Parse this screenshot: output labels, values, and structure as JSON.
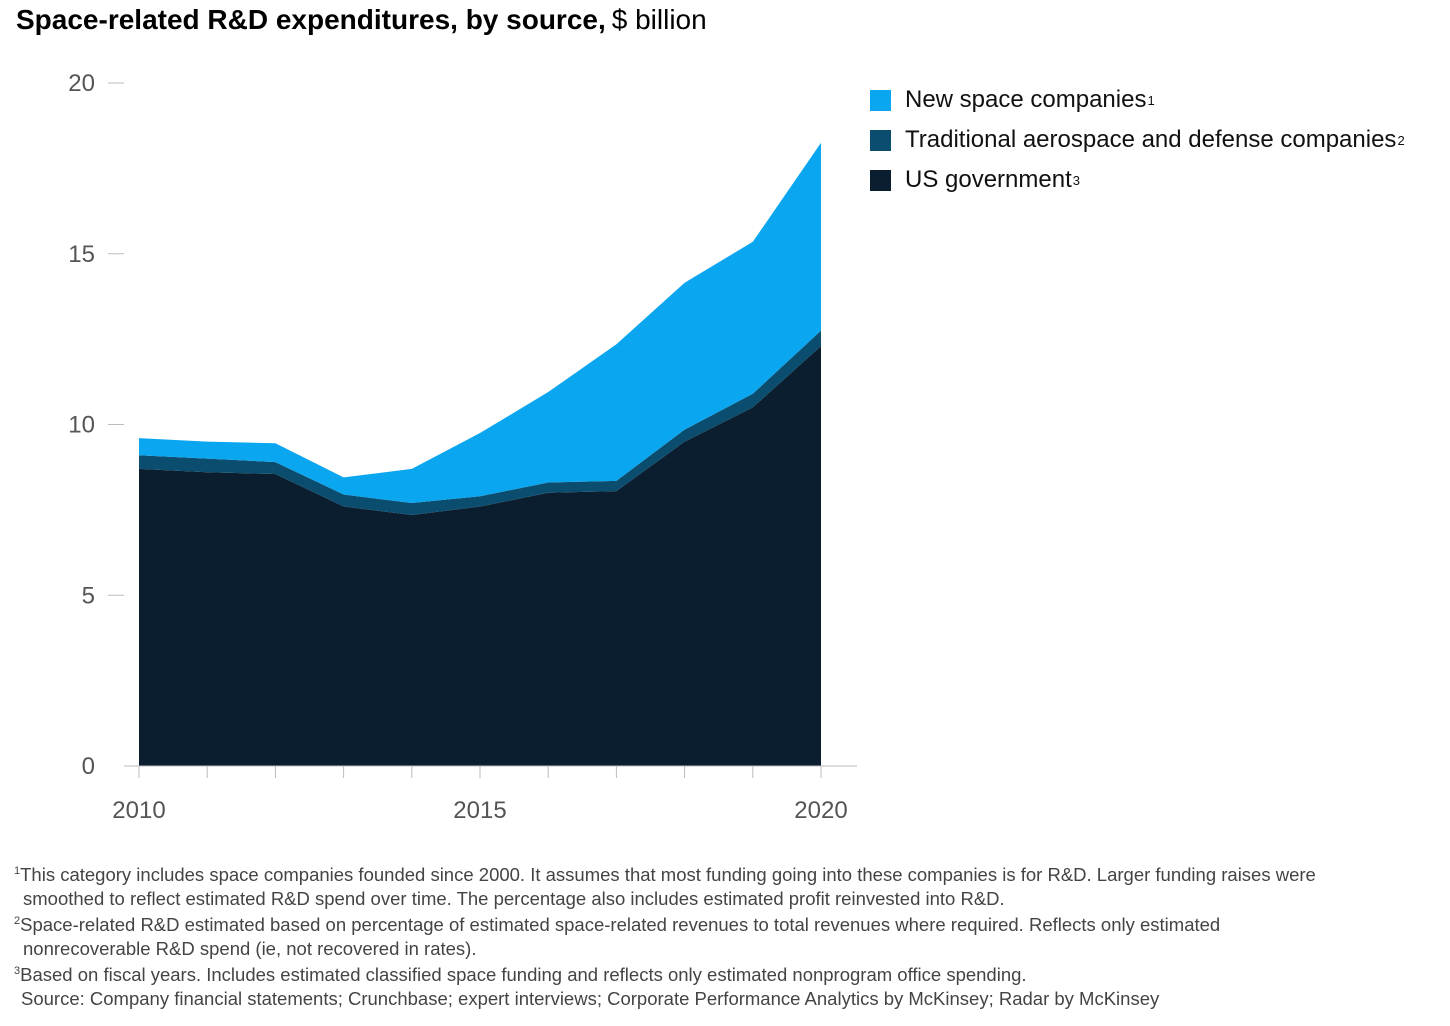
{
  "title": {
    "bold": "Space-related R&D expenditures, by source,",
    "unit": "$ billion"
  },
  "legend": [
    {
      "label": "New space companies",
      "sup": "1",
      "color": "#0aa6f0"
    },
    {
      "label": "Traditional aerospace and defense companies",
      "sup": "2",
      "color": "#0b4d6e"
    },
    {
      "label": "US government",
      "sup": "3",
      "color": "#0a1e2f"
    }
  ],
  "footnotes": [
    {
      "sup": "1",
      "line1": "This category includes space companies founded since 2000. It assumes that most funding going into these companies is for R&D. Larger funding raises were",
      "line2": "smoothed to reflect estimated R&D spend over time. The percentage also includes estimated profit reinvested into R&D."
    },
    {
      "sup": "2",
      "line1": "Space-related R&D estimated based on percentage of estimated space-related revenues to total revenues where required. Reflects only estimated",
      "line2": "nonrecoverable R&D spend (ie, not recovered in rates)."
    },
    {
      "sup": "3",
      "line1": "Based on fiscal years. Includes estimated classified space funding and reflects only estimated nonprogram office spending.",
      "line2": ""
    }
  ],
  "source": "Source: Company financial statements; Crunchbase; expert interviews; Corporate Performance Analytics by McKinsey; Radar by McKinsey",
  "chart_data": {
    "type": "area",
    "stacked": true,
    "x": [
      2010,
      2011,
      2012,
      2013,
      2014,
      2015,
      2016,
      2017,
      2018,
      2019,
      2020
    ],
    "x_tick_labels": [
      "2010",
      "2015",
      "2020"
    ],
    "y_tick_labels": [
      "0",
      "5",
      "10",
      "15",
      "20"
    ],
    "ylim": [
      0,
      20
    ],
    "series": [
      {
        "name": "US government",
        "color": "#0a1e2f",
        "values": [
          8.7,
          8.6,
          8.55,
          7.6,
          7.35,
          7.6,
          8.0,
          8.05,
          9.5,
          10.5,
          12.3
        ]
      },
      {
        "name": "Traditional aerospace and defense companies",
        "color": "#0b4d6e",
        "values": [
          0.4,
          0.4,
          0.35,
          0.35,
          0.35,
          0.3,
          0.3,
          0.3,
          0.35,
          0.4,
          0.45
        ]
      },
      {
        "name": "New space companies",
        "color": "#0aa6f0",
        "values": [
          0.5,
          0.5,
          0.55,
          0.5,
          1.0,
          1.85,
          2.65,
          4.0,
          4.3,
          4.45,
          5.5
        ]
      }
    ]
  }
}
